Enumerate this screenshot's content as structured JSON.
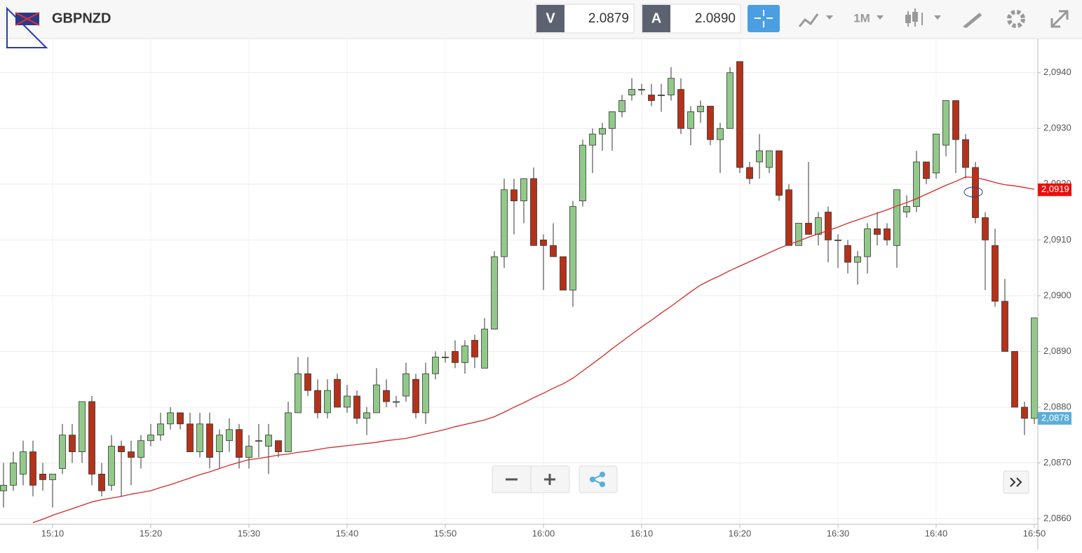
{
  "toolbar": {
    "symbol": "GBPNZD",
    "bid_label": "V",
    "bid": "2.0879",
    "ask_label": "A",
    "ask": "2.0890",
    "timeframe": "1M"
  },
  "chart_data": {
    "type": "candlestick",
    "x": [
      "15:05",
      "15:06",
      "15:07",
      "15:08",
      "15:09",
      "15:10",
      "15:11",
      "15:12",
      "15:13",
      "15:14",
      "15:15",
      "15:16",
      "15:17",
      "15:18",
      "15:19",
      "15:20",
      "15:21",
      "15:22",
      "15:23",
      "15:24",
      "15:25",
      "15:26",
      "15:27",
      "15:28",
      "15:29",
      "15:30",
      "15:31",
      "15:32",
      "15:33",
      "15:34",
      "15:35",
      "15:36",
      "15:37",
      "15:38",
      "15:39",
      "15:40",
      "15:41",
      "15:42",
      "15:43",
      "15:44",
      "15:45",
      "15:46",
      "15:47",
      "15:48",
      "15:49",
      "15:50",
      "15:51",
      "15:52",
      "15:53",
      "15:54",
      "15:55",
      "15:56",
      "15:57",
      "15:58",
      "15:59",
      "16:00",
      "16:01",
      "16:02",
      "16:03",
      "16:04",
      "16:05",
      "16:06",
      "16:07",
      "16:08",
      "16:09",
      "16:10",
      "16:11",
      "16:12",
      "16:13",
      "16:14",
      "16:15",
      "16:16",
      "16:17",
      "16:18",
      "16:19",
      "16:20",
      "16:21",
      "16:22",
      "16:23",
      "16:24",
      "16:25",
      "16:26",
      "16:27",
      "16:28",
      "16:29",
      "16:30",
      "16:31",
      "16:32",
      "16:33",
      "16:34",
      "16:35",
      "16:36",
      "16:37",
      "16:38",
      "16:39",
      "16:40",
      "16:41",
      "16:42",
      "16:43",
      "16:44",
      "16:45",
      "16:46",
      "16:47",
      "16:48",
      "16:49",
      "16:50"
    ],
    "open": [
      2.0865,
      2.0866,
      2.0868,
      2.0872,
      2.0868,
      2.0867,
      2.0869,
      2.0875,
      2.0872,
      2.0881,
      2.0868,
      2.0866,
      2.0873,
      2.0872,
      2.0871,
      2.0874,
      2.0875,
      2.0877,
      2.0879,
      2.0877,
      2.0872,
      2.0877,
      2.0872,
      2.0874,
      2.0876,
      2.0871,
      2.0874,
      2.0873,
      2.0874,
      2.0872,
      2.0879,
      2.0886,
      2.0883,
      2.0879,
      2.0885,
      2.088,
      2.0882,
      2.0878,
      2.0879,
      2.0883,
      2.0881,
      2.0882,
      2.0885,
      2.0879,
      2.0886,
      2.0889,
      2.089,
      2.0888,
      2.0892,
      2.0887,
      2.0894,
      2.0907,
      2.0919,
      2.0917,
      2.0921,
      2.091,
      2.0909,
      2.0907,
      2.0901,
      2.0917,
      2.0927,
      2.0929,
      2.093,
      2.0933,
      2.0936,
      2.0937,
      2.0936,
      2.0936,
      2.0936,
      2.0937,
      2.093,
      2.0933,
      2.0934,
      2.0928,
      2.093,
      2.0942,
      2.0923,
      2.0924,
      2.0923,
      2.0926,
      2.0919,
      2.0909,
      2.0913,
      2.0911,
      2.0915,
      2.091,
      2.0909,
      2.0906,
      2.0907,
      2.0912,
      2.0912,
      2.0909,
      2.0915,
      2.0916,
      2.0924,
      2.0922,
      2.0927,
      2.0935,
      2.0928,
      2.0923,
      2.0914,
      2.0909,
      2.0899,
      2.089,
      2.088,
      2.0878
    ],
    "high": [
      2.087,
      2.0872,
      2.0874,
      2.0874,
      2.087,
      2.0868,
      2.0877,
      2.0877,
      2.0881,
      2.0882,
      2.087,
      2.0875,
      2.0874,
      2.0874,
      2.0875,
      2.0877,
      2.0879,
      2.088,
      2.0879,
      2.0879,
      2.0879,
      2.0879,
      2.0876,
      2.0878,
      2.0877,
      2.0875,
      2.0877,
      2.0877,
      2.0874,
      2.0881,
      2.0889,
      2.0889,
      2.0885,
      2.0885,
      2.0886,
      2.0884,
      2.0883,
      2.088,
      2.0887,
      2.0885,
      2.0882,
      2.0888,
      2.0886,
      2.0888,
      2.089,
      2.089,
      2.0892,
      2.0892,
      2.0893,
      2.0896,
      2.0908,
      2.0921,
      2.0921,
      2.0921,
      2.0923,
      2.0911,
      2.0913,
      2.0907,
      2.0917,
      2.0928,
      2.093,
      2.0931,
      2.0933,
      2.0936,
      2.0939,
      2.0938,
      2.0938,
      2.0938,
      2.0941,
      2.0939,
      2.0934,
      2.0935,
      2.0934,
      2.0931,
      2.0941,
      2.0942,
      2.0924,
      2.0929,
      2.0926,
      2.0926,
      2.092,
      2.0913,
      2.0924,
      2.0915,
      2.0916,
      2.0911,
      2.091,
      2.0908,
      2.0913,
      2.0915,
      2.0913,
      2.0919,
      2.0918,
      2.0926,
      2.0924,
      2.0929,
      2.0935,
      2.0935,
      2.0929,
      2.0924,
      2.0915,
      2.0912,
      2.0903,
      2.089,
      2.0881,
      2.0896
    ],
    "low": [
      2.0862,
      2.0865,
      2.0866,
      2.0864,
      2.0865,
      2.0862,
      2.0868,
      2.087,
      2.087,
      2.0866,
      2.0864,
      2.0865,
      2.0864,
      2.0866,
      2.0869,
      2.0873,
      2.0874,
      2.0876,
      2.0876,
      2.0872,
      2.0871,
      2.0869,
      2.0869,
      2.0872,
      2.0869,
      2.0869,
      2.0871,
      2.0868,
      2.0871,
      2.0872,
      2.0879,
      2.0882,
      2.0878,
      2.0878,
      2.088,
      2.0879,
      2.0877,
      2.0875,
      2.0879,
      2.088,
      2.088,
      2.0881,
      2.0878,
      2.0877,
      2.0885,
      2.0888,
      2.0887,
      2.0886,
      2.0887,
      2.0887,
      2.0894,
      2.0905,
      2.0911,
      2.0913,
      2.0909,
      2.0901,
      2.0907,
      2.0901,
      2.0898,
      2.0916,
      2.0922,
      2.0926,
      2.0926,
      2.0932,
      2.0935,
      2.0936,
      2.0934,
      2.0933,
      2.0935,
      2.0929,
      2.0927,
      2.0931,
      2.0927,
      2.0922,
      2.093,
      2.0922,
      2.092,
      2.0921,
      2.0922,
      2.0917,
      2.0909,
      2.0909,
      2.0911,
      2.0909,
      2.0906,
      2.0905,
      2.0904,
      2.0902,
      2.0904,
      2.0909,
      2.0909,
      2.0905,
      2.0914,
      2.0915,
      2.092,
      2.0921,
      2.0925,
      2.0922,
      2.0921,
      2.0913,
      2.0901,
      2.0898,
      2.089,
      2.088,
      2.0875,
      2.0877
    ],
    "close": [
      2.0866,
      2.087,
      2.0872,
      2.0866,
      2.0867,
      2.0868,
      2.0875,
      2.0872,
      2.0881,
      2.0868,
      2.0865,
      2.0873,
      2.0872,
      2.0871,
      2.0874,
      2.0875,
      2.0877,
      2.0879,
      2.0877,
      2.0872,
      2.0877,
      2.0871,
      2.0875,
      2.0876,
      2.0871,
      2.0873,
      2.0874,
      2.0875,
      2.0872,
      2.0879,
      2.0886,
      2.0883,
      2.0879,
      2.0883,
      2.088,
      2.0882,
      2.0878,
      2.0879,
      2.0884,
      2.0881,
      2.0881,
      2.0886,
      2.0879,
      2.0886,
      2.0889,
      2.0889,
      2.0888,
      2.0891,
      2.0889,
      2.0894,
      2.0907,
      2.0919,
      2.0917,
      2.0921,
      2.0909,
      2.0909,
      2.0907,
      2.0901,
      2.0916,
      2.0927,
      2.0929,
      2.093,
      2.0933,
      2.0935,
      2.0937,
      2.0937,
      2.0935,
      2.0936,
      2.0939,
      2.093,
      2.0933,
      2.0934,
      2.0928,
      2.093,
      2.094,
      2.0923,
      2.0921,
      2.0926,
      2.0926,
      2.0918,
      2.0909,
      2.0913,
      2.0911,
      2.0914,
      2.091,
      2.091,
      2.0906,
      2.0907,
      2.0912,
      2.0911,
      2.091,
      2.0919,
      2.0916,
      2.0924,
      2.0921,
      2.0929,
      2.0935,
      2.0928,
      2.0923,
      2.0914,
      2.091,
      2.0899,
      2.089,
      2.088,
      2.0878,
      2.0896
    ],
    "up_color": "#92c98a",
    "down_color": "#b5321a",
    "ma": {
      "color": "#d42a2a",
      "values": [
        null,
        null,
        null,
        2.08593,
        2.08599,
        2.08606,
        2.08612,
        2.08618,
        2.08624,
        2.0863,
        2.08634,
        2.08637,
        2.0864,
        2.08644,
        2.08647,
        2.0865,
        2.08656,
        2.08661,
        2.08667,
        2.08673,
        2.08679,
        2.08684,
        2.0869,
        2.08696,
        2.08701,
        2.08706,
        2.08708,
        2.08711,
        2.08714,
        2.08716,
        2.08719,
        2.08721,
        2.08724,
        2.08727,
        2.08729,
        2.08731,
        2.08733,
        2.08735,
        2.08737,
        2.0874,
        2.08742,
        2.08744,
        2.08748,
        2.08752,
        2.08756,
        2.0876,
        2.08765,
        2.08769,
        2.08773,
        2.08777,
        2.08783,
        2.08791,
        2.088,
        2.08808,
        2.08817,
        2.08825,
        2.08834,
        2.08842,
        2.08852,
        2.08865,
        2.08878,
        2.08891,
        2.08905,
        2.08918,
        2.08931,
        2.08944,
        2.08956,
        2.08969,
        2.08981,
        2.08994,
        2.09007,
        2.09019,
        2.09028,
        2.09036,
        2.09045,
        2.09053,
        2.09061,
        2.09069,
        2.09077,
        2.09085,
        2.09092,
        2.09098,
        2.09105,
        2.09111,
        2.09117,
        2.09123,
        2.0913,
        2.09136,
        2.09142,
        2.09148,
        2.09154,
        2.09161,
        2.09167,
        2.09174,
        2.09182,
        2.0919,
        2.09198,
        2.09205,
        2.09213,
        2.09212,
        2.09208,
        2.09203,
        2.09199,
        2.09197,
        2.09194,
        2.09191
      ]
    },
    "ylim": [
      2.0859,
      2.0946
    ],
    "yticks": [
      {
        "value": 2.086,
        "label": "2,0860"
      },
      {
        "value": 2.087,
        "label": "2,0870"
      },
      {
        "value": 2.088,
        "label": "2,0880"
      },
      {
        "value": 2.089,
        "label": "2,0890"
      },
      {
        "value": 2.09,
        "label": "2,0900"
      },
      {
        "value": 2.091,
        "label": "2,0910"
      },
      {
        "value": 2.092,
        "label": "2,0920"
      },
      {
        "value": 2.093,
        "label": "2,0930"
      },
      {
        "value": 2.094,
        "label": "2,0940"
      }
    ],
    "xticks": [
      "15:10",
      "15:20",
      "15:30",
      "15:40",
      "15:50",
      "16:00",
      "16:10",
      "16:20",
      "16:30",
      "16:40",
      "16:50"
    ],
    "price_labels": [
      {
        "value": 2.0919,
        "label": "2,0919",
        "color": "#e8100c"
      },
      {
        "value": 2.0878,
        "label": "2,0878",
        "color": "#5aaed6"
      }
    ],
    "grid": true
  }
}
